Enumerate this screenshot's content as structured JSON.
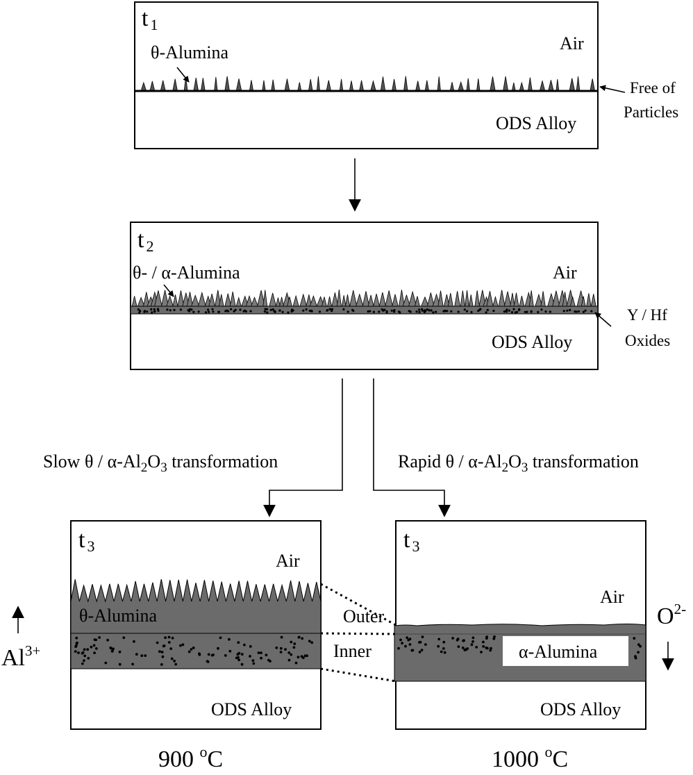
{
  "panel_t1": {
    "stage": "t",
    "stage_sub": "1",
    "air": "Air",
    "alloy": "ODS Alloy",
    "theta_label": "θ-Alumina",
    "free_line1": "Free of",
    "free_line2": "Particles"
  },
  "panel_t2": {
    "stage": "t",
    "stage_sub": "2",
    "air": "Air",
    "alloy": "ODS Alloy",
    "mix_label": "θ- / α-Alumina",
    "oxides_line1": "Y / Hf",
    "oxides_line2": "Oxides"
  },
  "branches": {
    "slow": {
      "pre": "Slow θ / α-Al",
      "sub1": "2",
      "mid": "O",
      "sub2": "3",
      "post": " transformation"
    },
    "rapid": {
      "pre": "Rapid θ / α-Al",
      "sub1": "2",
      "mid": "O",
      "sub2": "3",
      "post": " transformation"
    }
  },
  "panel_t3_left": {
    "stage": "t",
    "stage_sub": "3",
    "air": "Air",
    "alloy": "ODS Alloy",
    "theta_label": "θ-Alumina",
    "temp_value": "900 ",
    "temp_sup": "o",
    "temp_unit": "C"
  },
  "panel_t3_right": {
    "stage": "t",
    "stage_sub": "3",
    "air": "Air",
    "alloy": "ODS Alloy",
    "alpha_label": "α-Alumina",
    "temp_value": "1000 ",
    "temp_sup": "o",
    "temp_unit": "C"
  },
  "middle_labels": {
    "outer": "Outer",
    "inner": "Inner"
  },
  "ions": {
    "al_base": "Al",
    "al_sup": "3+",
    "o_base": "O",
    "o_sup": "2-"
  },
  "colors": {
    "scale_fill": "#6b6b6b",
    "line": "#000000",
    "background": "#ffffff"
  }
}
